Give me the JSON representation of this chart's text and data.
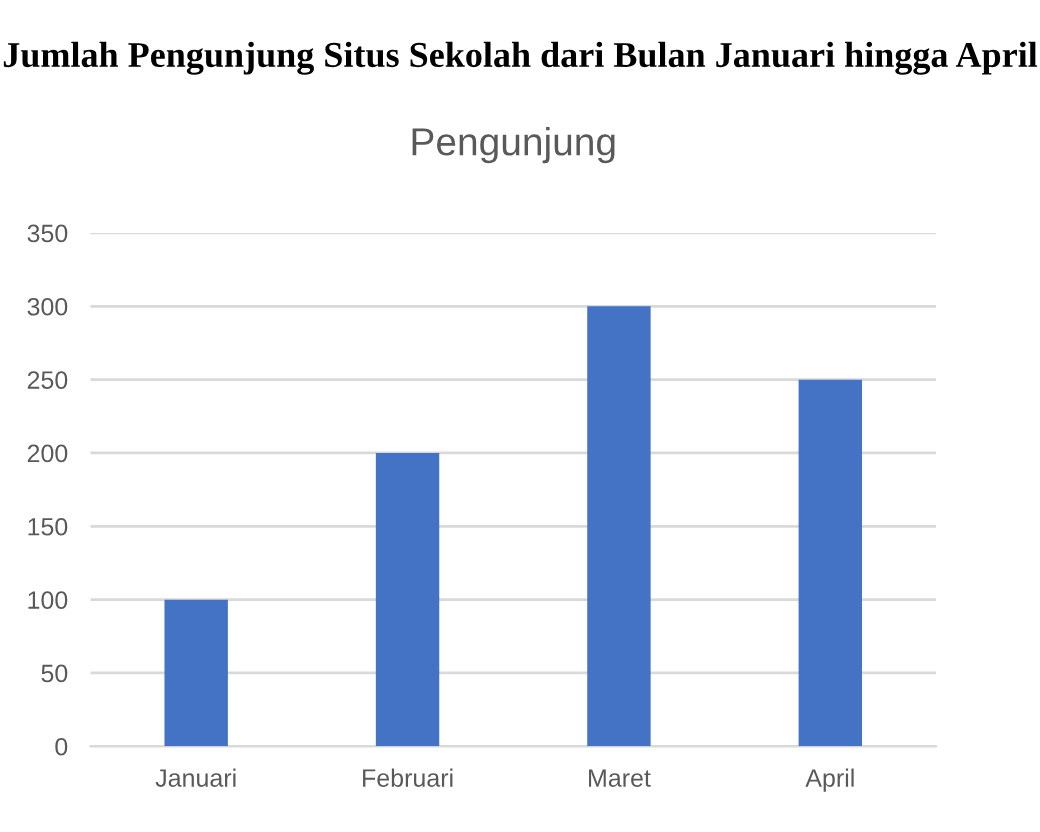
{
  "chart_data": {
    "type": "bar",
    "title": "Jumlah Pengunjung Situs Sekolah dari Bulan Januari hingga April",
    "subtitle": "Pengunjung",
    "categories": [
      "Januari",
      "Februari",
      "Maret",
      "April"
    ],
    "values": [
      100,
      200,
      300,
      250
    ],
    "color": "#4472c4",
    "ylim": [
      0,
      350
    ],
    "yticks": [
      0,
      50,
      100,
      150,
      200,
      250,
      300,
      350
    ],
    "grid": "y",
    "legend": false
  }
}
